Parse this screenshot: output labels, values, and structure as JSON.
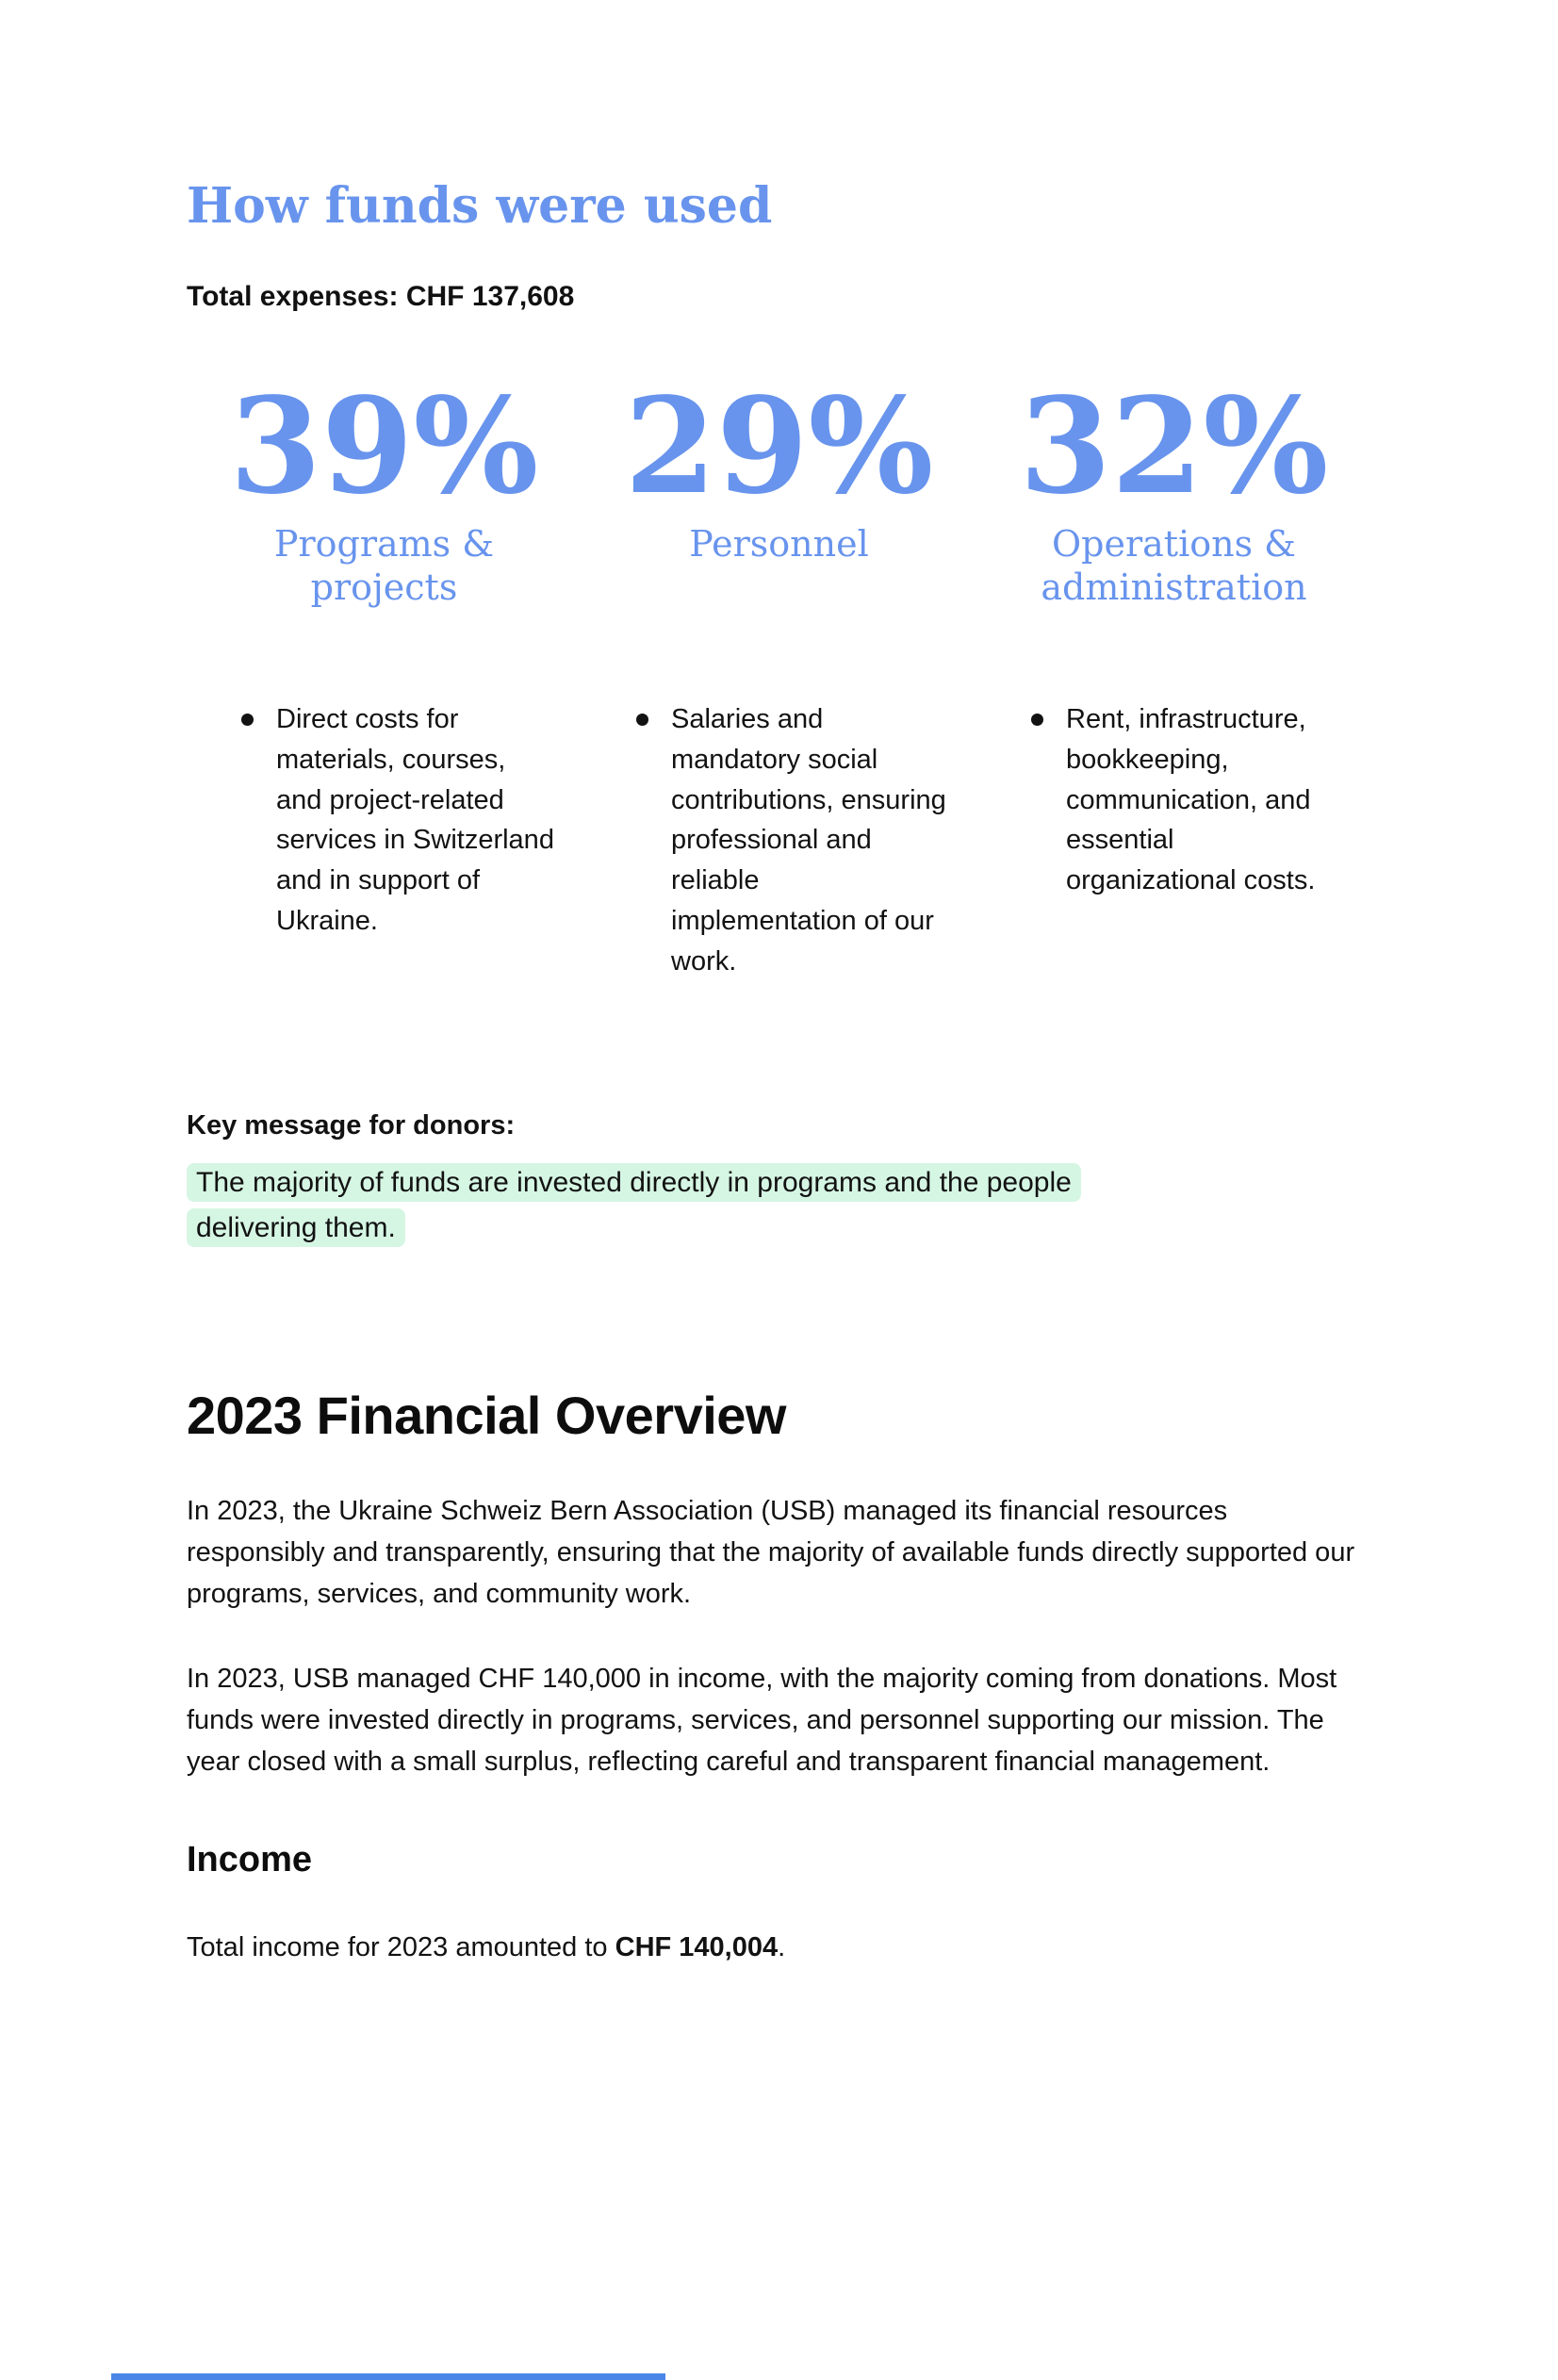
{
  "document": {
    "title": "How funds were used",
    "total_expenses": "Total expenses: CHF 137,608",
    "expense_breakdown": [
      {
        "percent": "39%",
        "label": "Programs & projects",
        "description": "Direct costs for materials, courses, and project-related services in Switzerland and in support of Ukraine."
      },
      {
        "percent": "29%",
        "label": "Personnel",
        "description": "Salaries and mandatory social contributions, ensuring professional and reliable implementation of our work."
      },
      {
        "percent": "32%",
        "label": "Operations & administration",
        "description": "Rent, infrastructure, bookkeeping, communication, and essential organizational costs."
      }
    ],
    "key_message_label": "Key message for donors:",
    "key_message": "The majority of funds are invested directly in programs and the people delivering them.",
    "overview_heading": "2023 Financial Overview",
    "overview_paragraph_1": "In 2023, the Ukraine Schweiz Bern Association (USB) managed its financial resources responsibly and transparently, ensuring that the majority of available funds directly supported our programs, services, and community work.",
    "overview_paragraph_2": "In 2023, USB managed CHF 140,000 in income, with the majority coming from donations. Most funds were invested directly in programs, services, and personnel supporting our mission. The year closed with a small surplus, reflecting careful and transparent financial management.",
    "income_heading": "Income",
    "income_sentence": {
      "prefix": "Total income for 2023 amounted to ",
      "amount": "CHF 140,004",
      "suffix": "."
    }
  },
  "colors": {
    "accent_blue": "#6894ED",
    "highlight_green": "#D6F6E4",
    "table_edge_blue": "#4A86E8",
    "text": "#121212"
  }
}
